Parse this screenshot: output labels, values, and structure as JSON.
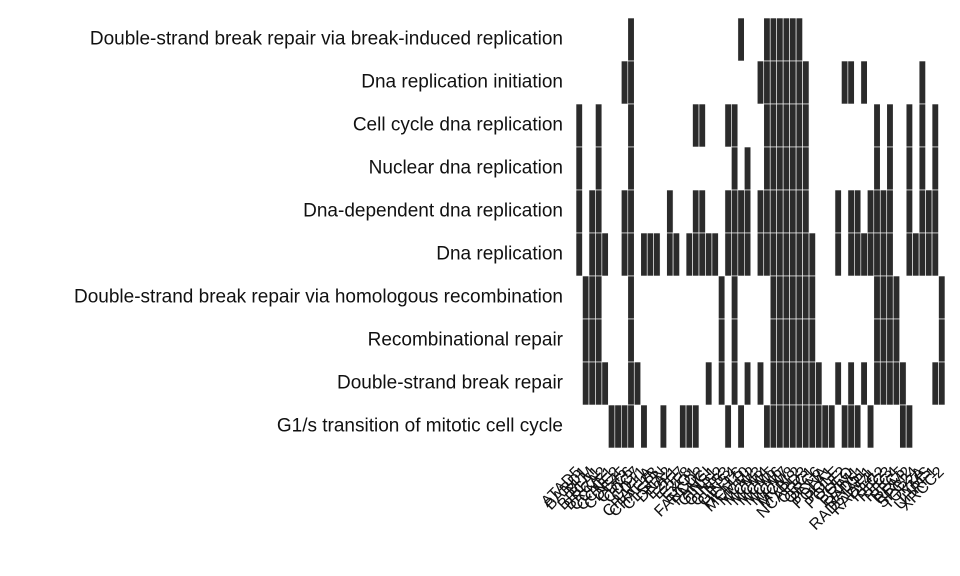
{
  "chart_data": {
    "type": "heatmap",
    "title": "",
    "xlabel": "",
    "ylabel": "",
    "cell_color": "#2b2b2b",
    "background_color": "#ffffff",
    "terms": [
      "Double-strand break repair via break-induced replication",
      "Dna replication initiation",
      "Cell cycle dna replication",
      "Nuclear dna replication",
      "Dna-dependent dna replication",
      "Dna replication",
      "Double-strand break repair via homologous recombination",
      "Recombinational repair",
      "Double-strand break repair",
      "G1/s transition of mitotic cell cycle"
    ],
    "genes": [
      "ATAD5",
      "BARD1",
      "BLM",
      "BRCA1",
      "BRCA2",
      "CCNE1",
      "CCNE2",
      "CDC45",
      "CDC6",
      "CDC7",
      "CDT1",
      "CHAF1A",
      "CHAF1B",
      "CLSPN",
      "DNA2",
      "E2F1",
      "E2F7",
      "E2F8",
      "EXO1",
      "FANCD2",
      "FANCI",
      "GINS1",
      "GINS2",
      "GINS3",
      "GINS4",
      "HELLS",
      "MCM10",
      "MCM2",
      "MCM3",
      "MCM4",
      "MCM5",
      "MCM6",
      "MCM7",
      "MCM8",
      "MYBL2",
      "NCAPD3",
      "ORC1",
      "ORC6",
      "PCNA",
      "POLA1",
      "POLE",
      "POLE2",
      "POLQ",
      "PRIM1",
      "RAD51",
      "RAD51AP1",
      "RAD54L",
      "RFC2",
      "RFC3",
      "RFC4",
      "RFC5",
      "RRM2",
      "SPC24",
      "TOP2A",
      "TYMS",
      "UHRF1",
      "XRCC2"
    ],
    "matrix": [
      [
        0,
        0,
        0,
        0,
        0,
        0,
        0,
        0,
        1,
        0,
        0,
        0,
        0,
        0,
        0,
        0,
        0,
        0,
        0,
        0,
        0,
        0,
        0,
        0,
        0,
        1,
        0,
        0,
        0,
        1,
        1,
        1,
        1,
        1,
        1,
        0,
        0,
        0,
        0,
        0,
        0,
        0,
        0,
        0,
        0,
        0,
        0,
        0,
        0,
        0,
        0,
        0,
        0,
        0,
        0,
        0,
        0
      ],
      [
        0,
        0,
        0,
        0,
        0,
        0,
        0,
        1,
        1,
        0,
        0,
        0,
        0,
        0,
        0,
        0,
        0,
        0,
        0,
        0,
        0,
        0,
        0,
        0,
        0,
        0,
        0,
        0,
        1,
        1,
        1,
        1,
        1,
        1,
        1,
        1,
        0,
        0,
        0,
        0,
        0,
        1,
        1,
        0,
        1,
        0,
        0,
        0,
        0,
        0,
        0,
        0,
        0,
        1,
        0,
        0,
        0
      ],
      [
        1,
        0,
        0,
        1,
        0,
        0,
        0,
        0,
        1,
        0,
        0,
        0,
        0,
        0,
        0,
        0,
        0,
        0,
        1,
        1,
        0,
        0,
        0,
        1,
        1,
        0,
        0,
        0,
        0,
        1,
        1,
        1,
        1,
        1,
        1,
        1,
        0,
        0,
        0,
        0,
        0,
        0,
        0,
        0,
        0,
        0,
        1,
        0,
        1,
        0,
        0,
        1,
        0,
        1,
        0,
        1,
        0
      ],
      [
        1,
        0,
        0,
        1,
        0,
        0,
        0,
        0,
        1,
        0,
        0,
        0,
        0,
        0,
        0,
        0,
        0,
        0,
        0,
        0,
        0,
        0,
        0,
        0,
        1,
        0,
        1,
        0,
        0,
        1,
        1,
        1,
        1,
        1,
        1,
        1,
        0,
        0,
        0,
        0,
        0,
        0,
        0,
        0,
        0,
        0,
        1,
        0,
        1,
        0,
        0,
        1,
        0,
        1,
        0,
        1,
        0
      ],
      [
        1,
        0,
        1,
        1,
        0,
        0,
        0,
        1,
        1,
        0,
        0,
        0,
        0,
        0,
        1,
        0,
        0,
        0,
        1,
        1,
        0,
        0,
        0,
        1,
        1,
        1,
        1,
        0,
        1,
        1,
        1,
        1,
        1,
        1,
        1,
        1,
        0,
        0,
        0,
        0,
        1,
        0,
        1,
        1,
        0,
        1,
        1,
        1,
        1,
        0,
        0,
        1,
        0,
        1,
        1,
        1,
        0
      ],
      [
        1,
        0,
        1,
        1,
        1,
        0,
        0,
        1,
        1,
        0,
        1,
        1,
        1,
        0,
        1,
        1,
        0,
        1,
        1,
        1,
        1,
        1,
        0,
        1,
        1,
        1,
        1,
        0,
        1,
        1,
        1,
        1,
        1,
        1,
        1,
        1,
        1,
        0,
        0,
        0,
        1,
        0,
        1,
        1,
        1,
        1,
        1,
        1,
        1,
        0,
        0,
        1,
        1,
        1,
        1,
        1,
        0
      ],
      [
        0,
        1,
        1,
        1,
        0,
        0,
        0,
        0,
        1,
        0,
        0,
        0,
        0,
        0,
        0,
        0,
        0,
        0,
        0,
        0,
        0,
        0,
        1,
        0,
        1,
        0,
        0,
        0,
        0,
        0,
        1,
        1,
        1,
        1,
        1,
        1,
        1,
        0,
        0,
        0,
        0,
        0,
        0,
        0,
        0,
        0,
        1,
        1,
        1,
        1,
        0,
        0,
        0,
        0,
        0,
        0,
        1
      ],
      [
        0,
        1,
        1,
        1,
        0,
        0,
        0,
        0,
        1,
        0,
        0,
        0,
        0,
        0,
        0,
        0,
        0,
        0,
        0,
        0,
        0,
        0,
        1,
        0,
        1,
        0,
        0,
        0,
        0,
        0,
        1,
        1,
        1,
        1,
        1,
        1,
        1,
        0,
        0,
        0,
        0,
        0,
        0,
        0,
        0,
        0,
        1,
        1,
        1,
        1,
        0,
        0,
        0,
        0,
        0,
        0,
        1
      ],
      [
        0,
        1,
        1,
        1,
        1,
        0,
        0,
        0,
        1,
        1,
        0,
        0,
        0,
        0,
        0,
        0,
        0,
        0,
        0,
        0,
        1,
        0,
        1,
        0,
        1,
        0,
        1,
        0,
        1,
        0,
        1,
        1,
        1,
        1,
        1,
        1,
        1,
        1,
        0,
        0,
        1,
        0,
        1,
        0,
        1,
        0,
        1,
        1,
        1,
        1,
        1,
        0,
        0,
        0,
        0,
        1,
        1
      ],
      [
        0,
        0,
        0,
        0,
        0,
        1,
        1,
        1,
        1,
        0,
        1,
        0,
        0,
        1,
        0,
        0,
        1,
        1,
        1,
        0,
        0,
        0,
        0,
        1,
        0,
        1,
        0,
        0,
        0,
        1,
        1,
        1,
        1,
        1,
        1,
        1,
        1,
        1,
        1,
        1,
        0,
        1,
        1,
        1,
        0,
        1,
        0,
        0,
        0,
        0,
        1,
        1,
        0,
        0,
        0,
        0,
        0
      ]
    ]
  }
}
